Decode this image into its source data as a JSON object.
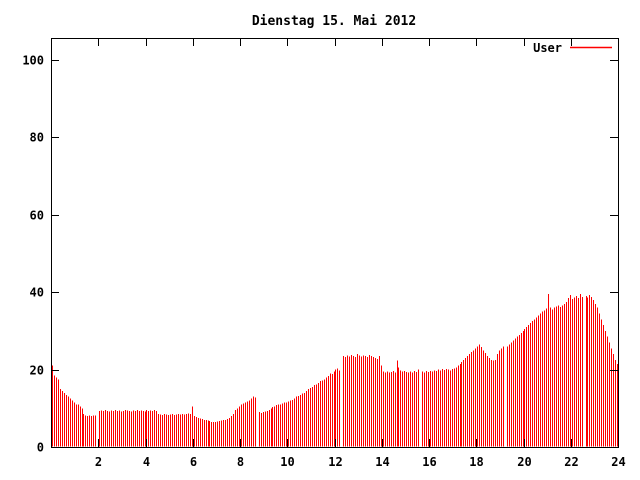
{
  "window": {
    "title": "Dienstag 15. Mai 2012"
  },
  "legend": {
    "entries": [
      {
        "label": "User",
        "color": "#ff0000"
      }
    ],
    "position": "top-right"
  },
  "chart_data": {
    "type": "bar",
    "style": "impulses",
    "title": "Dienstag 15. Mai 2012",
    "xlabel": "",
    "ylabel": "",
    "xlim": [
      0,
      24
    ],
    "ylim": [
      0,
      105
    ],
    "x_ticks": [
      2,
      4,
      6,
      8,
      10,
      12,
      14,
      16,
      18,
      20,
      22,
      24
    ],
    "y_ticks": [
      0,
      20,
      40,
      60,
      80,
      100
    ],
    "grid": false,
    "background": "#ffffff",
    "axis_color": "#000000",
    "x_unit": "hour-of-day",
    "sample_interval_minutes": 5,
    "series": [
      {
        "name": "User",
        "color": "#ff0000",
        "values": [
          21,
          18.5,
          18,
          17.5,
          15,
          14.5,
          14,
          13.5,
          13,
          12.5,
          12,
          11.5,
          11,
          11,
          10.5,
          10,
          8.5,
          8.2,
          8,
          8.2,
          8,
          8.1,
          8.2,
          0,
          9.3,
          9.4,
          9.3,
          9.5,
          9.3,
          9.2,
          9.4,
          9.3,
          9.5,
          9.3,
          9.4,
          9.2,
          9.3,
          9.5,
          9.4,
          9.3,
          9.2,
          9.4,
          9.3,
          9.5,
          9.3,
          9.4,
          9.3,
          9.2,
          9.5,
          9.3,
          9.4,
          9.3,
          9.5,
          9.3,
          8.5,
          8.4,
          8.3,
          8.5,
          8.4,
          8.3,
          8.4,
          8.5,
          8.3,
          8.4,
          8.5,
          8.4,
          8.5,
          8.4,
          8.5,
          8.6,
          8.5,
          10.5,
          8,
          7.8,
          7.5,
          7.3,
          7.2,
          7,
          7,
          6.8,
          6.7,
          6.5,
          6.5,
          6.5,
          6.6,
          6.7,
          6.8,
          7,
          7,
          7.2,
          7.5,
          8,
          8.5,
          9.5,
          10,
          10.5,
          11,
          11.2,
          11.5,
          11.7,
          12,
          12.5,
          13,
          12.8,
          0,
          9,
          8.8,
          9,
          9.2,
          9.3,
          9.5,
          10,
          10.3,
          10.5,
          10.8,
          11,
          11,
          11.2,
          11.5,
          11.5,
          11.8,
          12,
          12.2,
          12.5,
          13,
          13.2,
          13.5,
          13.8,
          14,
          14.5,
          15,
          15.2,
          15.5,
          16,
          16.2,
          16.5,
          17,
          17.2,
          17.5,
          18,
          18.4,
          19,
          18.8,
          19.5,
          20,
          20.3,
          19.8,
          0,
          23.5,
          23.2,
          23.6,
          23.4,
          23.8,
          23.5,
          23.3,
          24,
          23.6,
          23.4,
          23.7,
          23.5,
          23.2,
          23.8,
          23.5,
          23.3,
          23,
          22.8,
          23.5,
          21,
          19.5,
          19.3,
          19.5,
          19.2,
          19.4,
          19.6,
          19.3,
          22.3,
          20.5,
          19.8,
          19.5,
          19.6,
          19.4,
          19.2,
          19.5,
          19.3,
          19.6,
          19.4,
          20,
          0,
          19.5,
          19.3,
          19.6,
          19.4,
          19.7,
          19.5,
          19.8,
          19.6,
          20,
          19.8,
          20.1,
          19.9,
          20.2,
          20,
          19.8,
          20.1,
          20.3,
          20.5,
          21,
          21.5,
          22,
          22.5,
          23,
          23.5,
          24,
          24.5,
          25,
          25.5,
          26,
          26.5,
          25.8,
          25,
          24.3,
          23.5,
          23,
          22.5,
          22.3,
          22.5,
          24,
          25,
          25.5,
          26,
          0,
          26,
          26.5,
          27,
          27.5,
          28,
          28.5,
          29,
          29.5,
          30,
          30.5,
          31,
          31.5,
          32,
          32.5,
          33,
          33.5,
          34,
          34.5,
          35,
          35.3,
          35.8,
          39.5,
          36,
          35.5,
          36,
          36.3,
          36.5,
          36.2,
          36.5,
          37,
          37.5,
          38.5,
          39.3,
          38.2,
          38.6,
          39,
          38.5,
          39.5,
          38.8,
          0,
          39,
          38.6,
          39.3,
          38.8,
          38,
          37,
          36,
          34.5,
          33,
          31.5,
          30,
          28.5,
          27,
          25.5,
          24,
          22.5,
          21.5
        ]
      }
    ]
  }
}
